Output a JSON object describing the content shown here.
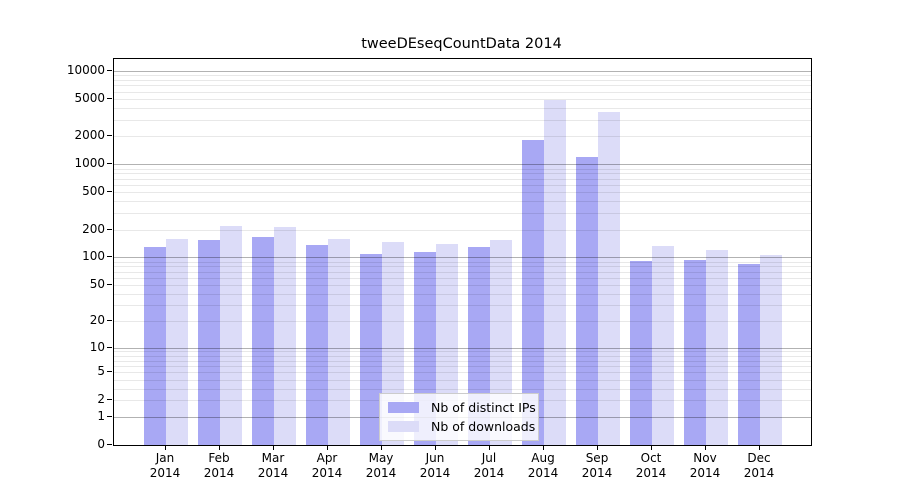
{
  "title": "tweeDEseqCountData 2014",
  "colors": {
    "bar_distinct_ips": "#a8a8f4",
    "bar_downloads": "#dcdcf8",
    "axis": "#000000",
    "grid_major": "#b5b5b5",
    "grid_minor": "#e8e8e8",
    "legend_border": "#cccccc"
  },
  "chart_data": {
    "type": "bar",
    "title": "tweeDEseqCountData 2014",
    "xlabel": "",
    "ylabel": "",
    "yscale": "log1p",
    "ylim": [
      0,
      13400
    ],
    "grid": true,
    "legend_position": "bottom-center-inside",
    "categories": [
      "Jan",
      "Feb",
      "Mar",
      "Apr",
      "May",
      "Jun",
      "Jul",
      "Aug",
      "Sep",
      "Oct",
      "Nov",
      "Dec"
    ],
    "category_year": "2014",
    "series": [
      {
        "name": "Nb of distinct IPs",
        "color": "#a8a8f4",
        "values": [
          130,
          155,
          165,
          137,
          110,
          115,
          130,
          1820,
          1200,
          92,
          94,
          85
        ]
      },
      {
        "name": "Nb of downloads",
        "color": "#dcdcf8",
        "values": [
          160,
          220,
          215,
          160,
          148,
          140,
          155,
          4900,
          3600,
          133,
          121,
          106
        ]
      }
    ],
    "yticks": [
      {
        "value": 0,
        "label": "0"
      },
      {
        "value": 1,
        "label": "1"
      },
      {
        "value": 2,
        "label": "2"
      },
      {
        "value": 5,
        "label": "5"
      },
      {
        "value": 10,
        "label": "10"
      },
      {
        "value": 20,
        "label": "20"
      },
      {
        "value": 50,
        "label": "50"
      },
      {
        "value": 100,
        "label": "100"
      },
      {
        "value": 200,
        "label": "200"
      },
      {
        "value": 500,
        "label": "500"
      },
      {
        "value": 1000,
        "label": "1000"
      },
      {
        "value": 2000,
        "label": "2000"
      },
      {
        "value": 5000,
        "label": "5000"
      },
      {
        "value": 10000,
        "label": "10000"
      }
    ],
    "grid_major_values": [
      1,
      10,
      100,
      1000,
      10000
    ],
    "grid_minor_values": [
      2,
      3,
      4,
      5,
      6,
      7,
      8,
      9,
      20,
      30,
      40,
      50,
      60,
      70,
      80,
      90,
      200,
      300,
      400,
      500,
      600,
      700,
      800,
      900,
      2000,
      3000,
      4000,
      5000,
      6000,
      7000,
      8000,
      9000
    ]
  }
}
